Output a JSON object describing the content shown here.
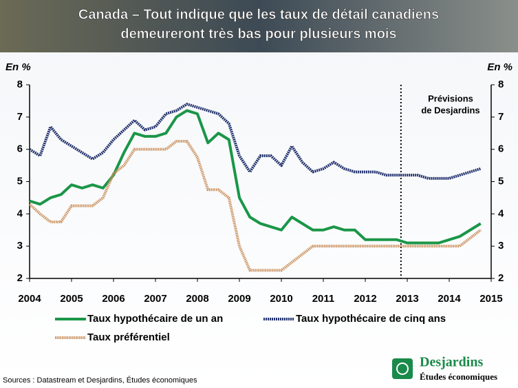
{
  "chart_data": {
    "type": "line",
    "title": [
      "Canada – Tout indique que les taux de détail canadiens",
      "demeureront très bas pour plusieurs mois"
    ],
    "y_label": "En %",
    "y2_label": "En %",
    "annotation": [
      "Prévisions",
      "de Desjardins"
    ],
    "forecast_x": 2012.85,
    "x": [
      2004,
      2004.25,
      2004.5,
      2004.75,
      2005,
      2005.25,
      2005.5,
      2005.75,
      2006,
      2006.25,
      2006.5,
      2006.75,
      2007,
      2007.25,
      2007.5,
      2007.75,
      2008,
      2008.25,
      2008.5,
      2008.75,
      2009,
      2009.25,
      2009.5,
      2009.75,
      2010,
      2010.25,
      2010.5,
      2010.75,
      2011,
      2011.25,
      2011.5,
      2011.75,
      2012,
      2012.25,
      2012.5,
      2012.75,
      2013,
      2013.25,
      2013.5,
      2013.75,
      2014,
      2014.25,
      2014.5,
      2014.75
    ],
    "xlim": [
      2004,
      2015
    ],
    "xticks": [
      2004,
      2005,
      2006,
      2007,
      2008,
      2009,
      2010,
      2011,
      2012,
      2013,
      2014,
      2015
    ],
    "ylim": [
      2,
      8
    ],
    "yticks": [
      2,
      3,
      4,
      5,
      6,
      7,
      8
    ],
    "y2lim": [
      2,
      8
    ],
    "y2ticks": [
      2,
      3,
      4,
      5,
      6,
      7,
      8
    ],
    "legend": "bottom",
    "series": [
      {
        "name": "Taux hypothécaire de un an",
        "color": "#1a9648",
        "values": [
          4.4,
          4.3,
          4.5,
          4.6,
          4.9,
          4.8,
          4.9,
          4.8,
          5.2,
          5.9,
          6.5,
          6.4,
          6.4,
          6.5,
          7.0,
          7.2,
          7.1,
          6.2,
          6.5,
          6.3,
          4.5,
          3.9,
          3.7,
          3.6,
          3.5,
          3.9,
          3.7,
          3.5,
          3.5,
          3.6,
          3.5,
          3.5,
          3.2,
          3.2,
          3.2,
          3.2,
          3.1,
          3.1,
          3.1,
          3.1,
          3.2,
          3.3,
          3.5,
          3.7
        ]
      },
      {
        "name": "Taux hypothécaire de cinq ans",
        "color": "#1f2f6b",
        "values": [
          6.0,
          5.8,
          6.7,
          6.3,
          6.1,
          5.9,
          5.7,
          5.9,
          6.3,
          6.6,
          6.9,
          6.6,
          6.7,
          7.1,
          7.2,
          7.4,
          7.3,
          7.2,
          7.1,
          6.8,
          5.8,
          5.3,
          5.8,
          5.8,
          5.5,
          6.1,
          5.6,
          5.3,
          5.4,
          5.6,
          5.4,
          5.3,
          5.3,
          5.3,
          5.2,
          5.2,
          5.2,
          5.2,
          5.1,
          5.1,
          5.1,
          5.2,
          5.3,
          5.4
        ]
      },
      {
        "name": "Taux préférentiel",
        "color": "#c98f5a",
        "values": [
          4.3,
          4.0,
          3.75,
          3.75,
          4.25,
          4.25,
          4.25,
          4.5,
          5.25,
          5.5,
          6.0,
          6.0,
          6.0,
          6.0,
          6.25,
          6.25,
          5.75,
          4.75,
          4.75,
          4.5,
          3.0,
          2.25,
          2.25,
          2.25,
          2.25,
          2.5,
          2.75,
          3.0,
          3.0,
          3.0,
          3.0,
          3.0,
          3.0,
          3.0,
          3.0,
          3.0,
          3.0,
          3.0,
          3.0,
          3.0,
          3.0,
          3.0,
          3.25,
          3.5
        ]
      }
    ]
  },
  "footer": {
    "source": "Sources : Datastream et Desjardins, Études économiques",
    "logo_name": "Desjardins",
    "logo_subtitle": "Études économiques"
  }
}
